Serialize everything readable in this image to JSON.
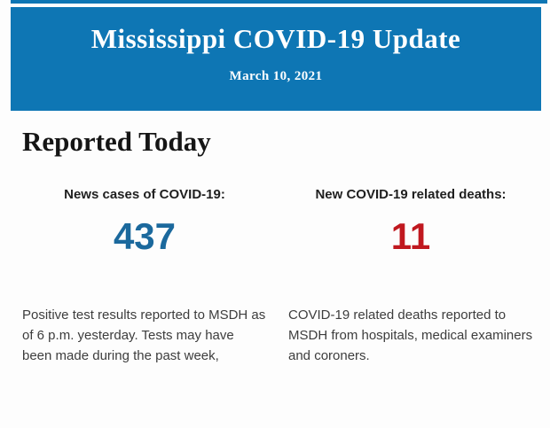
{
  "page": {
    "background_color": "#fdfdfd"
  },
  "header": {
    "title": "Mississippi COVID-19 Update",
    "date": "March 10, 2021",
    "background_color": "#0e76b4",
    "text_color": "#ffffff"
  },
  "section": {
    "title": "Reported Today"
  },
  "stats": [
    {
      "label": "News cases of COVID-19:",
      "value": "437",
      "value_color": "#1b699d",
      "description": "Positive test results reported to MSDH as of 6 p.m. yesterday. Tests may have been made during the past week,"
    },
    {
      "label": "New COVID-19 related deaths:",
      "value": "11",
      "value_color": "#c0181f",
      "description": "COVID-19 related deaths reported to MSDH from hospitals, medical examiners and coroners."
    }
  ]
}
